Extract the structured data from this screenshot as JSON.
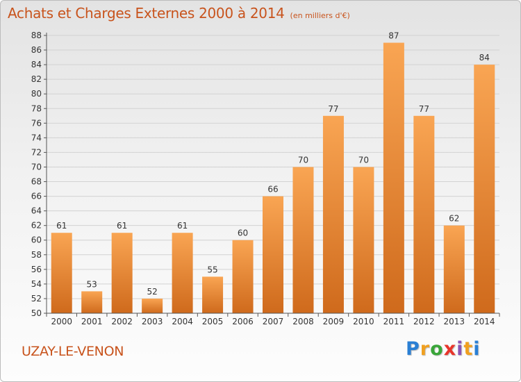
{
  "header": {
    "title": "Achats et Charges Externes 2000 à 2014",
    "unit": "(en milliers d'€)"
  },
  "footer": {
    "place": "UZAY-LE-VENON",
    "logo_letters": [
      {
        "ch": "P",
        "color": "#2a7fd4"
      },
      {
        "ch": "r",
        "color": "#f0a020"
      },
      {
        "ch": "o",
        "color": "#3aa63a"
      },
      {
        "ch": "x",
        "color": "#e8352b"
      },
      {
        "ch": "i",
        "color": "#8a55b5"
      },
      {
        "ch": "t",
        "color": "#f0a020"
      },
      {
        "ch": "i",
        "color": "#2a7fd4"
      }
    ]
  },
  "colors": {
    "bar_light": "#f9a553",
    "bar_dark": "#cf6a1c",
    "grid": "#d2d2d2",
    "axis": "#555555",
    "text": "#333333",
    "accent": "#c8531c"
  },
  "chart_data": {
    "type": "bar",
    "categories": [
      "2000",
      "2001",
      "2002",
      "2003",
      "2004",
      "2005",
      "2006",
      "2007",
      "2008",
      "2009",
      "2010",
      "2011",
      "2012",
      "2013",
      "2014"
    ],
    "values": [
      61,
      53,
      61,
      52,
      61,
      55,
      60,
      66,
      70,
      77,
      70,
      87,
      77,
      62,
      84
    ],
    "ylim": [
      50,
      88
    ],
    "yticks": [
      50,
      52,
      54,
      56,
      58,
      60,
      62,
      64,
      66,
      68,
      70,
      72,
      74,
      76,
      78,
      80,
      82,
      84,
      86,
      88
    ],
    "grid": true,
    "data_labels": true,
    "legend": "none"
  }
}
